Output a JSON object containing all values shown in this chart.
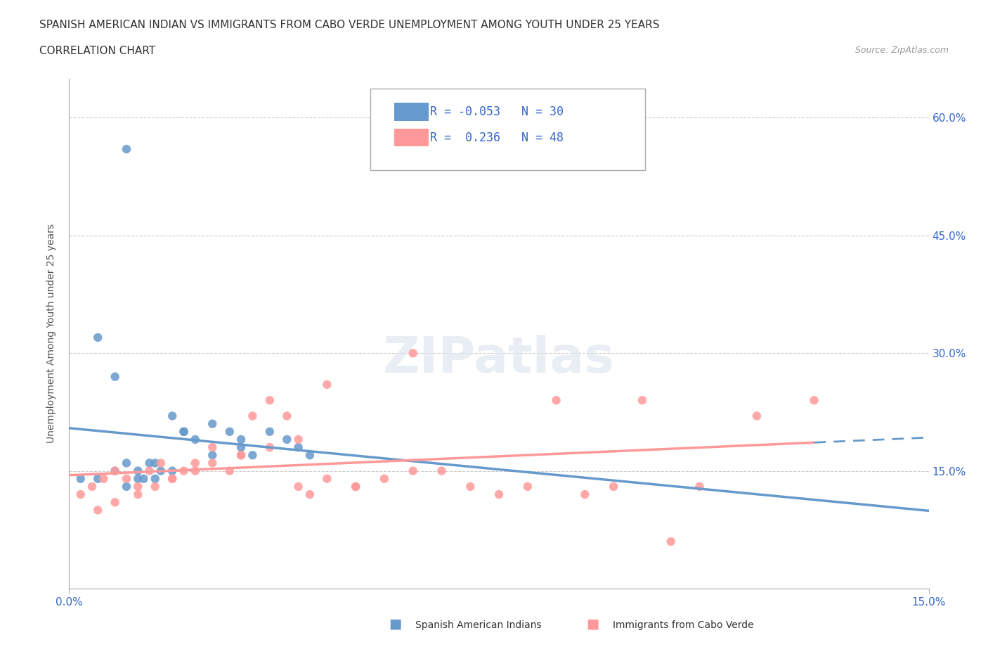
{
  "title_line1": "SPANISH AMERICAN INDIAN VS IMMIGRANTS FROM CABO VERDE UNEMPLOYMENT AMONG YOUTH UNDER 25 YEARS",
  "title_line2": "CORRELATION CHART",
  "source_text": "Source: ZipAtlas.com",
  "xlabel": "",
  "ylabel": "Unemployment Among Youth under 25 years",
  "xlim": [
    0.0,
    0.15
  ],
  "ylim": [
    0.0,
    0.65
  ],
  "xtick_labels": [
    "0.0%",
    "15.0%"
  ],
  "ytick_labels": [
    "15.0%",
    "30.0%",
    "45.0%",
    "60.0%"
  ],
  "ytick_values": [
    0.15,
    0.3,
    0.45,
    0.6
  ],
  "blue_color": "#6699CC",
  "pink_color": "#FF9999",
  "blue_R": -0.053,
  "blue_N": 30,
  "pink_R": 0.236,
  "pink_N": 48,
  "legend_label_blue": "Spanish American Indians",
  "legend_label_pink": "Immigrants from Cabo Verde",
  "watermark": "ZIPatlas",
  "blue_scatter_x": [
    0.002,
    0.005,
    0.008,
    0.01,
    0.012,
    0.013,
    0.014,
    0.015,
    0.016,
    0.018,
    0.02,
    0.022,
    0.025,
    0.028,
    0.03,
    0.032,
    0.035,
    0.038,
    0.04,
    0.042,
    0.005,
    0.008,
    0.01,
    0.012,
    0.015,
    0.018,
    0.02,
    0.025,
    0.03,
    0.01
  ],
  "blue_scatter_y": [
    0.14,
    0.14,
    0.15,
    0.16,
    0.15,
    0.14,
    0.16,
    0.14,
    0.15,
    0.22,
    0.2,
    0.19,
    0.21,
    0.2,
    0.18,
    0.17,
    0.2,
    0.19,
    0.18,
    0.17,
    0.32,
    0.27,
    0.13,
    0.14,
    0.16,
    0.15,
    0.2,
    0.17,
    0.19,
    0.56
  ],
  "pink_scatter_x": [
    0.002,
    0.004,
    0.006,
    0.008,
    0.01,
    0.012,
    0.014,
    0.016,
    0.018,
    0.02,
    0.022,
    0.025,
    0.028,
    0.03,
    0.032,
    0.035,
    0.038,
    0.04,
    0.042,
    0.045,
    0.05,
    0.055,
    0.06,
    0.065,
    0.07,
    0.08,
    0.09,
    0.1,
    0.11,
    0.12,
    0.13,
    0.005,
    0.008,
    0.012,
    0.015,
    0.018,
    0.022,
    0.025,
    0.03,
    0.035,
    0.04,
    0.045,
    0.05,
    0.06,
    0.075,
    0.085,
    0.095,
    0.105
  ],
  "pink_scatter_y": [
    0.12,
    0.13,
    0.14,
    0.15,
    0.14,
    0.13,
    0.15,
    0.16,
    0.14,
    0.15,
    0.16,
    0.18,
    0.15,
    0.17,
    0.22,
    0.24,
    0.22,
    0.13,
    0.12,
    0.26,
    0.13,
    0.14,
    0.3,
    0.15,
    0.13,
    0.13,
    0.12,
    0.24,
    0.13,
    0.22,
    0.24,
    0.1,
    0.11,
    0.12,
    0.13,
    0.14,
    0.15,
    0.16,
    0.17,
    0.18,
    0.19,
    0.14,
    0.13,
    0.15,
    0.12,
    0.24,
    0.13,
    0.06
  ]
}
